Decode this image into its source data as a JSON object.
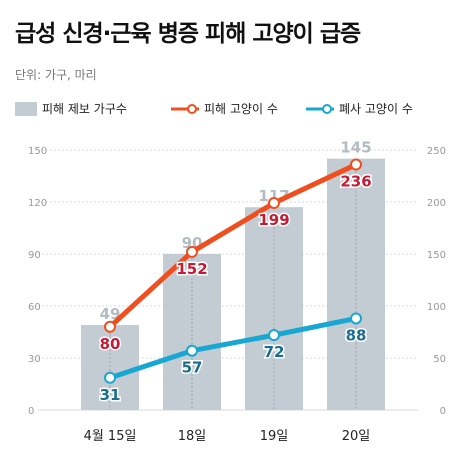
{
  "title": "급성 신경·근육 병증 피해 고양이 급증",
  "unit_note": "단위: 가구, 마리",
  "colors": {
    "bar": "#c3ccd2",
    "bar_label": "#b3bcc3",
    "deaths_line": "#f04e1e",
    "deaths_label": "#c51b35",
    "dead_line": "#18a6d3",
    "dead_label": "#1a6d8f",
    "axis_text": "#999999"
  },
  "chart_data": {
    "type": "bar",
    "title": "급성 신경·근육 병증 피해 고양이 급증",
    "categories": [
      "4월 15일",
      "18일",
      "19일",
      "20일"
    ],
    "left_axis": {
      "ylim": [
        0,
        150
      ],
      "ticks": [
        "0",
        "30",
        "60",
        "90",
        "120",
        "150"
      ]
    },
    "right_axis": {
      "ylim": [
        0,
        250
      ],
      "ticks": [
        "0",
        "50",
        "100",
        "150",
        "200",
        "250"
      ]
    },
    "grid": true,
    "legend_position": "top-left",
    "series": [
      {
        "name": "피해 제보 가구수",
        "type": "bar",
        "axis": "left",
        "values": [
          49,
          90,
          117,
          145
        ]
      },
      {
        "name": "피해 고양이 수",
        "type": "line",
        "axis": "right",
        "values": [
          80,
          152,
          199,
          236
        ]
      },
      {
        "name": "폐사 고양이 수",
        "type": "line",
        "axis": "right",
        "values": [
          31,
          57,
          72,
          88
        ]
      }
    ]
  }
}
